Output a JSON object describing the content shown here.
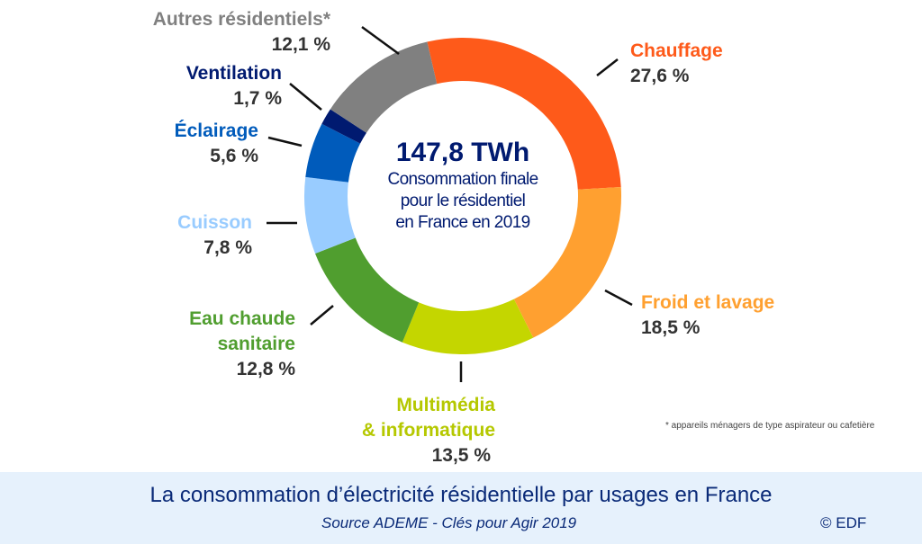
{
  "chart_data": {
    "type": "pie",
    "donut": true,
    "center": {
      "value": "147,8 TWh",
      "lines": [
        "Consommation finale",
        "pour le résidentiel",
        "en France en 2019"
      ]
    },
    "slices": [
      {
        "label": "Chauffage",
        "value": 27.6,
        "display": "27,6 %",
        "color": "#fe5a1a"
      },
      {
        "label": "Froid et lavage",
        "value": 18.5,
        "display": "18,5 %",
        "color": "#ffa030"
      },
      {
        "label_lines": [
          "Multimédia",
          "& informatique"
        ],
        "value": 13.5,
        "display": "13,5 %",
        "color": "#c4d600"
      },
      {
        "label_lines": [
          "Eau chaude",
          "sanitaire"
        ],
        "value": 12.8,
        "display": "12,8 %",
        "color": "#509e2f"
      },
      {
        "label": "Cuisson",
        "value": 7.8,
        "display": "7,8 %",
        "color": "#99ccff"
      },
      {
        "label": "Éclairage",
        "value": 5.6,
        "display": "5,6 %",
        "color": "#005bbb"
      },
      {
        "label": "Ventilation",
        "value": 1.7,
        "display": "1,7 %",
        "color": "#001a70"
      },
      {
        "label": "Autres résidentiels*",
        "value": 12.1,
        "display": "12,1 %",
        "color": "#808080"
      }
    ],
    "footnote": "* appareils ménagers de type aspirateur ou cafetière"
  },
  "footer": {
    "title": "La consommation d’électricité résidentielle par usages en France",
    "source": "Source ADEME - Clés pour Agir 2019",
    "copyright": "© EDF",
    "background": "#e6f1fc"
  }
}
